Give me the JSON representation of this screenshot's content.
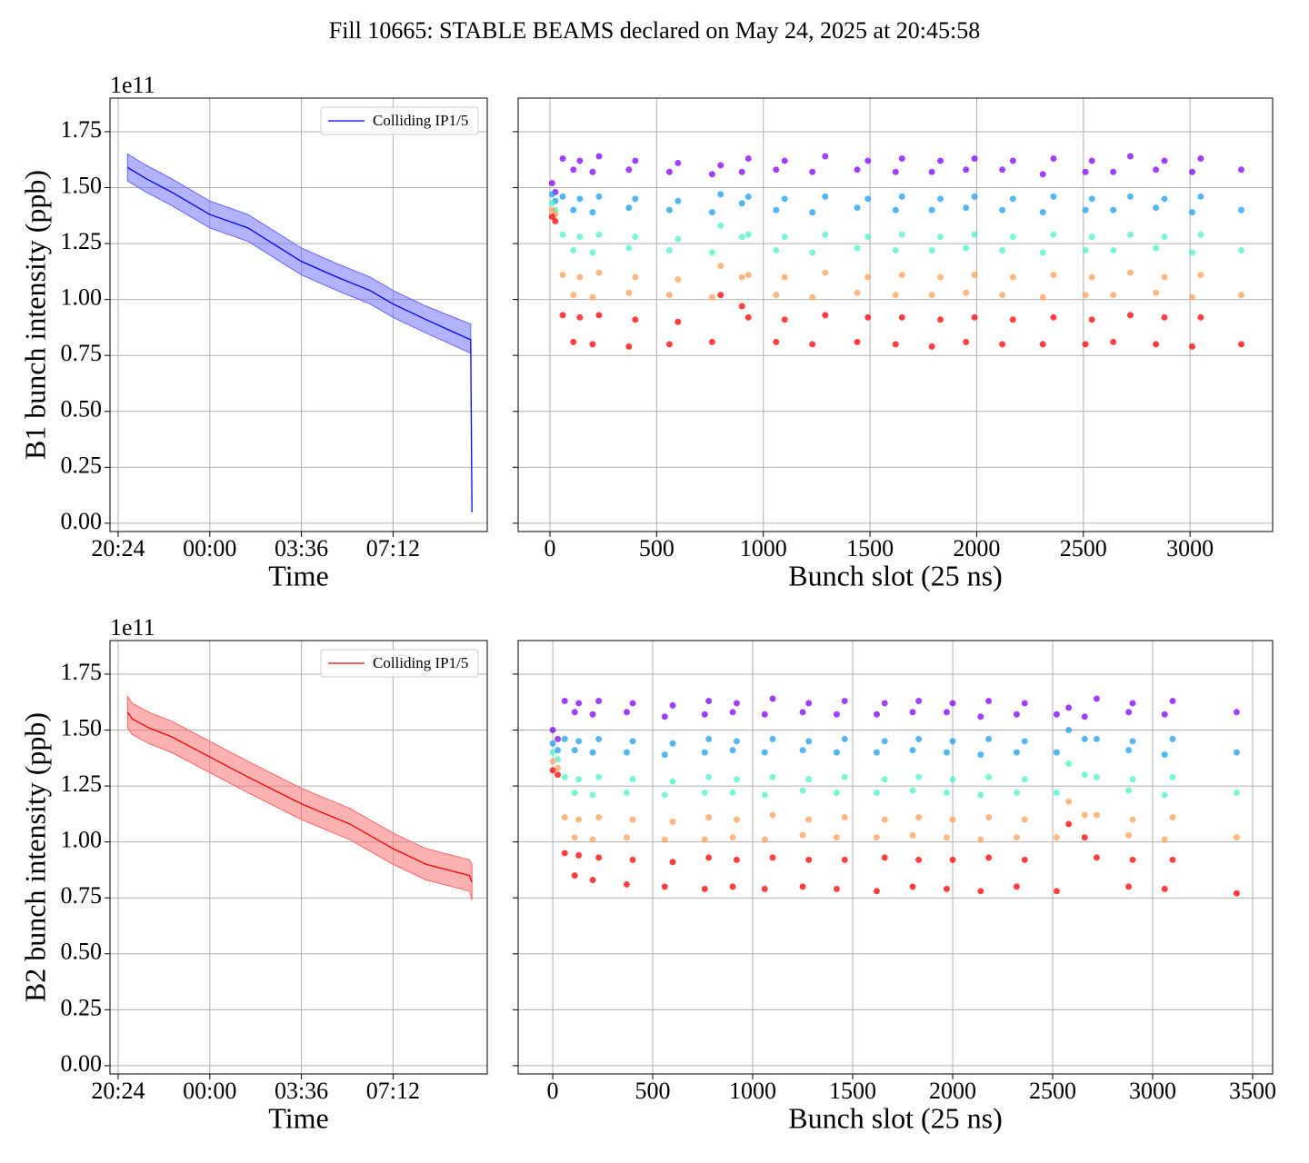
{
  "title": "Fill 10665: STABLE BEAMS declared on May 24, 2025 at 20:45:58",
  "chart_data": [
    {
      "type": "line",
      "xlabel": "Time",
      "ylabel": "B1 bunch intensity (ppb)",
      "y_offset_text": "1e11",
      "grid": true,
      "legend": "upper right",
      "xlim": [
        20.08,
        34.9
      ],
      "xticks": [
        {
          "value": 20.4,
          "label": "20:24"
        },
        {
          "value": 24,
          "label": "00:00"
        },
        {
          "value": 27.6,
          "label": "03:36"
        },
        {
          "value": 31.2,
          "label": "07:12"
        }
      ],
      "ylim": [
        -0.037,
        1.9
      ],
      "yticks": [
        {
          "value": 0,
          "label": "0.00"
        },
        {
          "value": 0.25,
          "label": "0.25"
        },
        {
          "value": 0.5,
          "label": "0.50"
        },
        {
          "value": 0.75,
          "label": "0.75"
        },
        {
          "value": 1,
          "label": "1.00"
        },
        {
          "value": 1.25,
          "label": "1.25"
        },
        {
          "value": 1.5,
          "label": "1.50"
        },
        {
          "value": 1.75,
          "label": "1.75"
        }
      ],
      "series": [
        {
          "name": "Colliding IP1/5",
          "color": "#0000ff",
          "band_color": "#6666ff",
          "x": [
            20.77,
            21.5,
            22.5,
            24,
            25.5,
            27.6,
            29,
            30.3,
            31.2,
            32.5,
            34.25,
            34.3
          ],
          "values": [
            1.59,
            1.54,
            1.48,
            1.38,
            1.32,
            1.17,
            1.1,
            1.04,
            0.98,
            0.91,
            0.82,
            0.05
          ],
          "upper": [
            1.65,
            1.6,
            1.54,
            1.44,
            1.38,
            1.23,
            1.16,
            1.1,
            1.04,
            0.97,
            0.89,
            null
          ],
          "lower": [
            1.53,
            1.48,
            1.42,
            1.32,
            1.26,
            1.11,
            1.04,
            0.98,
            0.92,
            0.85,
            0.76,
            null
          ]
        }
      ]
    },
    {
      "type": "scatter",
      "xlabel": "Bunch slot (25 ns)",
      "grid": true,
      "y_tick_labels": false,
      "xlim": [
        -149,
        3387
      ],
      "xticks": [
        0,
        500,
        1000,
        1500,
        2000,
        2500,
        3000
      ],
      "ylim": [
        -0.037,
        1.9
      ],
      "yticks": [
        0,
        0.25,
        0.5,
        0.75,
        1,
        1.25,
        1.5,
        1.75
      ],
      "x": [
        10,
        25,
        60,
        110,
        140,
        200,
        230,
        370,
        400,
        560,
        600,
        760,
        800,
        900,
        930,
        1060,
        1100,
        1230,
        1290,
        1440,
        1490,
        1620,
        1650,
        1790,
        1830,
        1950,
        1990,
        2120,
        2170,
        2310,
        2360,
        2510,
        2540,
        2640,
        2720,
        2840,
        2880,
        3010,
        3050,
        3240
      ],
      "series": [
        {
          "color": "#8000ff",
          "values": [
            1.52,
            1.48,
            1.63,
            1.58,
            1.62,
            1.57,
            1.64,
            1.58,
            1.62,
            1.57,
            1.61,
            1.56,
            1.6,
            1.57,
            1.63,
            1.58,
            1.62,
            1.57,
            1.64,
            1.58,
            1.62,
            1.57,
            1.63,
            1.57,
            1.62,
            1.58,
            1.63,
            1.58,
            1.62,
            1.56,
            1.63,
            1.57,
            1.62,
            1.57,
            1.64,
            1.58,
            1.62,
            1.57,
            1.63,
            1.58
          ]
        },
        {
          "color": "#1c9ef0",
          "values": [
            1.47,
            1.44,
            1.46,
            1.4,
            1.45,
            1.39,
            1.46,
            1.41,
            1.45,
            1.4,
            1.44,
            1.39,
            1.47,
            1.43,
            1.46,
            1.4,
            1.45,
            1.39,
            1.46,
            1.41,
            1.45,
            1.4,
            1.46,
            1.4,
            1.45,
            1.41,
            1.46,
            1.4,
            1.45,
            1.39,
            1.46,
            1.4,
            1.45,
            1.4,
            1.46,
            1.41,
            1.45,
            1.39,
            1.46,
            1.4
          ]
        },
        {
          "color": "#50f0c8",
          "values": [
            1.43,
            1.4,
            1.29,
            1.22,
            1.28,
            1.21,
            1.29,
            1.23,
            1.28,
            1.22,
            1.27,
            1.21,
            1.33,
            1.28,
            1.29,
            1.22,
            1.28,
            1.21,
            1.29,
            1.23,
            1.28,
            1.22,
            1.29,
            1.22,
            1.28,
            1.23,
            1.29,
            1.22,
            1.28,
            1.21,
            1.29,
            1.22,
            1.28,
            1.22,
            1.29,
            1.23,
            1.28,
            1.21,
            1.29,
            1.22
          ]
        },
        {
          "color": "#ffa057",
          "values": [
            1.4,
            1.38,
            1.11,
            1.02,
            1.1,
            1.01,
            1.12,
            1.03,
            1.1,
            1.02,
            1.09,
            1.01,
            1.15,
            1.1,
            1.11,
            1.02,
            1.1,
            1.01,
            1.12,
            1.03,
            1.1,
            1.02,
            1.11,
            1.02,
            1.1,
            1.03,
            1.11,
            1.02,
            1.1,
            1.01,
            1.11,
            1.02,
            1.1,
            1.02,
            1.12,
            1.03,
            1.1,
            1.01,
            1.11,
            1.02
          ]
        },
        {
          "color": "#ff0000",
          "values": [
            1.37,
            1.35,
            0.93,
            0.81,
            0.92,
            0.8,
            0.93,
            0.79,
            0.91,
            0.8,
            0.9,
            0.81,
            1.02,
            0.97,
            0.92,
            0.81,
            0.91,
            0.8,
            0.93,
            0.81,
            0.92,
            0.8,
            0.92,
            0.79,
            0.91,
            0.81,
            0.92,
            0.8,
            0.91,
            0.8,
            0.92,
            0.8,
            0.91,
            0.81,
            0.93,
            0.8,
            0.92,
            0.79,
            0.92,
            0.8
          ]
        }
      ]
    },
    {
      "type": "line",
      "xlabel": "Time",
      "ylabel": "B2 bunch intensity (ppb)",
      "y_offset_text": "1e11",
      "grid": true,
      "legend": "upper right",
      "xlim": [
        20.08,
        34.9
      ],
      "xticks": [
        {
          "value": 20.4,
          "label": "20:24"
        },
        {
          "value": 24,
          "label": "00:00"
        },
        {
          "value": 27.6,
          "label": "03:36"
        },
        {
          "value": 31.2,
          "label": "07:12"
        }
      ],
      "ylim": [
        -0.037,
        1.9
      ],
      "yticks": [
        {
          "value": 0,
          "label": "0.00"
        },
        {
          "value": 0.25,
          "label": "0.25"
        },
        {
          "value": 0.5,
          "label": "0.50"
        },
        {
          "value": 0.75,
          "label": "0.75"
        },
        {
          "value": 1,
          "label": "1.00"
        },
        {
          "value": 1.25,
          "label": "1.25"
        },
        {
          "value": 1.5,
          "label": "1.50"
        },
        {
          "value": 1.75,
          "label": "1.75"
        }
      ],
      "series": [
        {
          "name": "Colliding IP1/5",
          "color": "#ff0000",
          "band_color": "#ff6666",
          "x": [
            20.77,
            20.95,
            21.6,
            22.5,
            24,
            25.5,
            27.6,
            29.5,
            31.2,
            32.5,
            34.2,
            34.3
          ],
          "values": [
            1.58,
            1.55,
            1.51,
            1.47,
            1.38,
            1.29,
            1.17,
            1.08,
            0.97,
            0.9,
            0.85,
            0.82
          ],
          "upper": [
            1.65,
            1.62,
            1.58,
            1.54,
            1.45,
            1.36,
            1.24,
            1.15,
            1.04,
            0.97,
            0.92,
            0.9
          ],
          "lower": [
            1.51,
            1.48,
            1.44,
            1.4,
            1.31,
            1.22,
            1.1,
            1.01,
            0.9,
            0.83,
            0.78,
            0.74
          ]
        }
      ]
    },
    {
      "type": "scatter",
      "xlabel": "Bunch slot (25 ns)",
      "grid": true,
      "y_tick_labels": false,
      "xlim": [
        -173,
        3600
      ],
      "xticks": [
        0,
        500,
        1000,
        1500,
        2000,
        2500,
        3000,
        3500
      ],
      "ylim": [
        -0.037,
        1.9
      ],
      "yticks": [
        0,
        0.25,
        0.5,
        0.75,
        1,
        1.25,
        1.5,
        1.75
      ],
      "x": [
        0,
        25,
        60,
        110,
        130,
        200,
        230,
        370,
        400,
        560,
        600,
        760,
        780,
        900,
        920,
        1060,
        1100,
        1250,
        1280,
        1420,
        1460,
        1620,
        1660,
        1800,
        1830,
        1970,
        2000,
        2140,
        2180,
        2320,
        2360,
        2520,
        2580,
        2660,
        2720,
        2880,
        2900,
        3060,
        3100,
        3420
      ],
      "series": [
        {
          "color": "#8000ff",
          "values": [
            1.5,
            1.46,
            1.63,
            1.58,
            1.62,
            1.57,
            1.63,
            1.58,
            1.62,
            1.56,
            1.61,
            1.57,
            1.63,
            1.58,
            1.62,
            1.57,
            1.64,
            1.58,
            1.62,
            1.57,
            1.63,
            1.57,
            1.62,
            1.58,
            1.63,
            1.58,
            1.62,
            1.56,
            1.63,
            1.57,
            1.62,
            1.57,
            1.6,
            1.56,
            1.64,
            1.58,
            1.62,
            1.57,
            1.63,
            1.58
          ]
        },
        {
          "color": "#1c9ef0",
          "values": [
            1.44,
            1.41,
            1.46,
            1.41,
            1.45,
            1.4,
            1.46,
            1.4,
            1.45,
            1.39,
            1.44,
            1.4,
            1.46,
            1.41,
            1.45,
            1.4,
            1.46,
            1.41,
            1.45,
            1.4,
            1.46,
            1.4,
            1.45,
            1.41,
            1.46,
            1.4,
            1.45,
            1.39,
            1.46,
            1.4,
            1.45,
            1.4,
            1.5,
            1.46,
            1.46,
            1.41,
            1.45,
            1.39,
            1.46,
            1.4
          ]
        },
        {
          "color": "#50f0c8",
          "values": [
            1.4,
            1.37,
            1.29,
            1.22,
            1.28,
            1.21,
            1.29,
            1.22,
            1.28,
            1.21,
            1.27,
            1.22,
            1.29,
            1.22,
            1.28,
            1.21,
            1.29,
            1.23,
            1.28,
            1.22,
            1.29,
            1.22,
            1.28,
            1.23,
            1.29,
            1.22,
            1.28,
            1.21,
            1.29,
            1.22,
            1.28,
            1.22,
            1.35,
            1.3,
            1.29,
            1.23,
            1.28,
            1.21,
            1.29,
            1.22
          ]
        },
        {
          "color": "#ffa057",
          "values": [
            1.36,
            1.33,
            1.11,
            1.02,
            1.1,
            1.01,
            1.11,
            1.02,
            1.1,
            1.01,
            1.09,
            1.01,
            1.11,
            1.02,
            1.1,
            1.01,
            1.12,
            1.03,
            1.1,
            1.02,
            1.11,
            1.02,
            1.1,
            1.03,
            1.11,
            1.02,
            1.1,
            1.01,
            1.11,
            1.02,
            1.1,
            1.02,
            1.18,
            1.12,
            1.12,
            1.03,
            1.1,
            1.01,
            1.11,
            1.02
          ]
        },
        {
          "color": "#ff0000",
          "values": [
            1.32,
            1.3,
            0.95,
            0.85,
            0.94,
            0.83,
            0.93,
            0.81,
            0.92,
            0.8,
            0.91,
            0.79,
            0.93,
            0.8,
            0.92,
            0.79,
            0.93,
            0.8,
            0.92,
            0.79,
            0.92,
            0.78,
            0.93,
            0.8,
            0.92,
            0.79,
            0.92,
            0.78,
            0.93,
            0.8,
            0.92,
            0.78,
            1.08,
            1.02,
            0.93,
            0.8,
            0.92,
            0.79,
            0.92,
            0.77
          ]
        }
      ]
    }
  ]
}
